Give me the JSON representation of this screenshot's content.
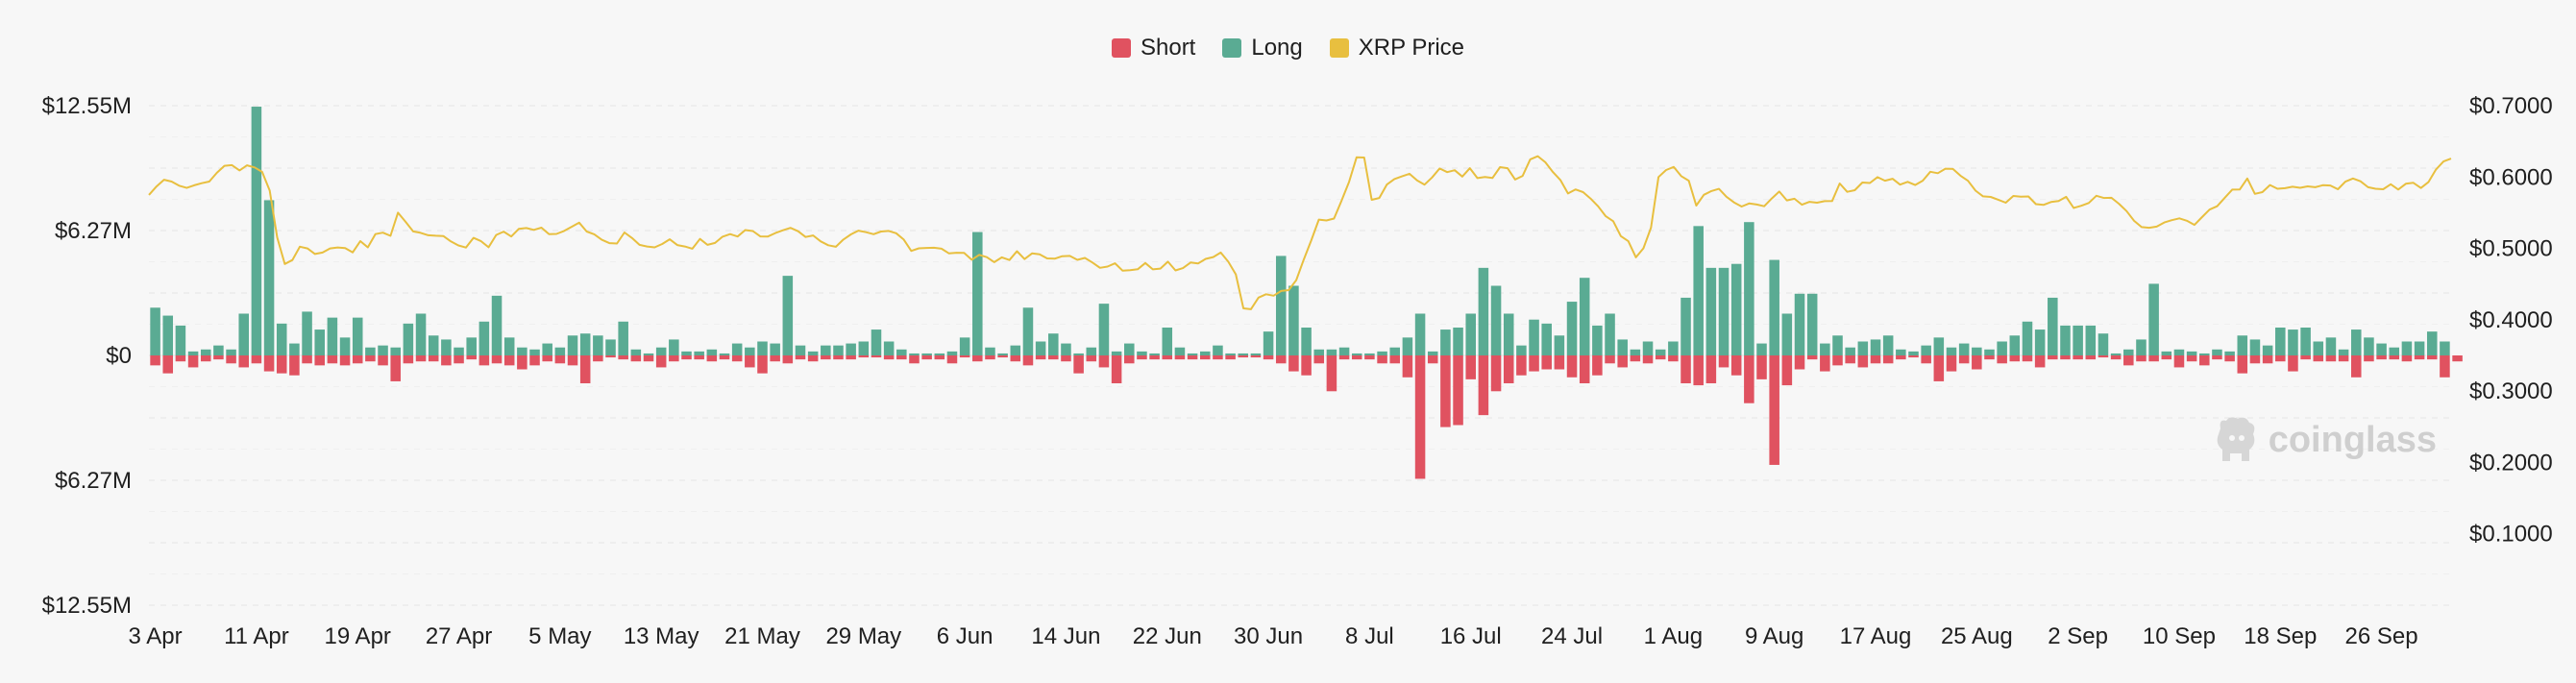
{
  "legend": {
    "items": [
      {
        "label": "Short",
        "color": "#e05260"
      },
      {
        "label": "Long",
        "color": "#5aab93"
      },
      {
        "label": "XRP Price",
        "color": "#e8bf3f"
      }
    ]
  },
  "watermark": {
    "text": "coinglass",
    "icon": "coinglass-logo-icon"
  },
  "chart_data": {
    "type": "bar",
    "y_left_ticks": [
      "$12.55M",
      "$6.27M",
      "$0",
      "$6.27M",
      "$12.55M"
    ],
    "y_left_range": [
      -12.55,
      12.55
    ],
    "y_left_unit": "M USD",
    "y_right_ticks": [
      "$0.7000",
      "$0.6000",
      "$0.5000",
      "$0.4000",
      "$0.3000",
      "$0.2000",
      "$0.1000"
    ],
    "y_right_range": [
      0.0,
      0.7
    ],
    "x_ticks": [
      "3 Apr",
      "11 Apr",
      "19 Apr",
      "27 Apr",
      "5 May",
      "13 May",
      "21 May",
      "29 May",
      "6 Jun",
      "14 Jun",
      "22 Jun",
      "30 Jun",
      "8 Jul",
      "16 Jul",
      "24 Jul",
      "1 Aug",
      "9 Aug",
      "17 Aug",
      "25 Aug",
      "2 Sep",
      "10 Sep",
      "18 Sep",
      "26 Sep"
    ],
    "x_tick_step_days": 8,
    "grid": true,
    "legend_position": "top-center",
    "long_values": [
      2.4,
      2.0,
      1.5,
      0.2,
      0.3,
      0.5,
      0.3,
      2.1,
      12.5,
      7.8,
      1.6,
      0.6,
      2.2,
      1.3,
      1.9,
      0.9,
      1.9,
      0.4,
      0.5,
      0.4,
      1.6,
      2.1,
      1.0,
      0.8,
      0.4,
      0.9,
      1.7,
      3.0,
      0.9,
      0.4,
      0.3,
      0.6,
      0.4,
      1.0,
      1.1,
      1.0,
      0.8,
      1.7,
      0.3,
      0.1,
      0.4,
      0.8,
      0.2,
      0.2,
      0.3,
      0.1,
      0.6,
      0.4,
      0.7,
      0.6,
      4.0,
      0.5,
      0.2,
      0.5,
      0.5,
      0.6,
      0.7,
      1.3,
      0.7,
      0.3,
      0.1,
      0.1,
      0.1,
      0.2,
      0.9,
      6.2,
      0.4,
      0.1,
      0.5,
      2.4,
      0.7,
      1.1,
      0.6,
      0.1,
      0.4,
      2.6,
      0.2,
      0.6,
      0.2,
      0.1,
      1.4,
      0.4,
      0.1,
      0.2,
      0.5,
      0.1,
      0.1,
      0.1,
      1.2,
      5.0,
      3.5,
      1.4,
      0.3,
      0.3,
      0.4,
      0.1,
      0.1,
      0.2,
      0.4,
      0.9,
      2.1,
      0.2,
      1.3,
      1.4,
      2.1,
      4.4,
      3.5,
      2.1,
      0.5,
      1.8,
      1.6,
      1.0,
      2.7,
      3.9,
      1.5,
      2.1,
      0.8,
      0.3,
      0.7,
      0.3,
      0.7,
      2.9,
      6.5,
      4.4,
      4.4,
      4.6,
      6.7,
      0.6,
      4.8,
      2.1,
      3.1,
      3.1,
      0.6,
      1.0,
      0.4,
      0.7,
      0.8,
      1.0,
      0.3,
      0.2,
      0.5,
      0.9,
      0.4,
      0.6,
      0.4,
      0.3,
      0.7,
      1.0,
      1.7,
      1.3,
      2.9,
      1.5,
      1.5,
      1.5,
      1.1,
      0.1,
      0.3,
      0.8,
      3.6,
      0.2,
      0.3,
      0.2,
      0.1,
      0.3,
      0.2,
      1.0,
      0.8,
      0.5,
      1.4,
      1.3,
      1.4,
      0.7,
      0.9,
      0.3,
      1.3,
      0.9,
      0.6,
      0.4,
      0.7,
      0.7,
      1.2,
      0.7
    ],
    "short_values": [
      0.5,
      0.9,
      0.3,
      0.6,
      0.3,
      0.2,
      0.4,
      0.6,
      0.4,
      0.8,
      0.9,
      1.0,
      0.4,
      0.5,
      0.4,
      0.5,
      0.4,
      0.3,
      0.5,
      1.3,
      0.4,
      0.3,
      0.3,
      0.5,
      0.4,
      0.2,
      0.5,
      0.4,
      0.5,
      0.7,
      0.5,
      0.3,
      0.4,
      0.5,
      1.4,
      0.3,
      0.1,
      0.2,
      0.3,
      0.3,
      0.6,
      0.3,
      0.2,
      0.2,
      0.3,
      0.2,
      0.3,
      0.6,
      0.9,
      0.3,
      0.4,
      0.2,
      0.3,
      0.2,
      0.2,
      0.2,
      0.1,
      0.1,
      0.2,
      0.2,
      0.4,
      0.2,
      0.2,
      0.4,
      0.1,
      0.3,
      0.2,
      0.1,
      0.3,
      0.5,
      0.2,
      0.2,
      0.3,
      0.9,
      0.3,
      0.6,
      1.4,
      0.4,
      0.2,
      0.2,
      0.2,
      0.2,
      0.2,
      0.2,
      0.2,
      0.2,
      0.1,
      0.1,
      0.2,
      0.4,
      0.8,
      1.0,
      0.4,
      1.8,
      0.2,
      0.2,
      0.2,
      0.4,
      0.4,
      1.1,
      6.2,
      0.4,
      3.6,
      3.5,
      1.2,
      3.0,
      1.8,
      1.4,
      1.0,
      0.8,
      0.7,
      0.7,
      1.1,
      1.4,
      1.0,
      0.4,
      0.6,
      0.3,
      0.4,
      0.2,
      0.3,
      1.4,
      1.5,
      1.4,
      0.6,
      1.0,
      2.4,
      1.2,
      5.5,
      1.5,
      0.7,
      0.2,
      0.8,
      0.5,
      0.4,
      0.6,
      0.4,
      0.4,
      0.2,
      0.1,
      0.4,
      1.3,
      0.8,
      0.4,
      0.7,
      0.2,
      0.4,
      0.3,
      0.3,
      0.6,
      0.2,
      0.2,
      0.2,
      0.2,
      0.1,
      0.2,
      0.5,
      0.3,
      0.3,
      0.2,
      0.6,
      0.3,
      0.5,
      0.2,
      0.3,
      0.9,
      0.4,
      0.4,
      0.3,
      0.8,
      0.2,
      0.3,
      0.3,
      0.3,
      1.1,
      0.3,
      0.2,
      0.2,
      0.3,
      0.2,
      0.2,
      1.1,
      0.3
    ],
    "price_values": [
      0.575,
      0.5868,
      0.5962,
      0.5937,
      0.5878,
      0.5848,
      0.5884,
      0.5913,
      0.5936,
      0.6059,
      0.6157,
      0.6167,
      0.6093,
      0.6164,
      0.6134,
      0.6072,
      0.581,
      0.5153,
      0.4781,
      0.4837,
      0.5024,
      0.5,
      0.4921,
      0.4942,
      0.5,
      0.5013,
      0.5005,
      0.4944,
      0.5102,
      0.5014,
      0.52,
      0.5221,
      0.5176,
      0.5501,
      0.5372,
      0.5238,
      0.5218,
      0.5184,
      0.5177,
      0.5173,
      0.5098,
      0.5042,
      0.5012,
      0.5148,
      0.5101,
      0.5016,
      0.5188,
      0.5235,
      0.5166,
      0.5273,
      0.5285,
      0.5259,
      0.529,
      0.5199,
      0.5203,
      0.5245,
      0.5303,
      0.536,
      0.5236,
      0.5197,
      0.5121,
      0.5073,
      0.5068,
      0.5223,
      0.5145,
      0.5049,
      0.5026,
      0.5015,
      0.5062,
      0.5128,
      0.5047,
      0.5026,
      0.4996,
      0.5133,
      0.505,
      0.5077,
      0.5164,
      0.52,
      0.5166,
      0.5257,
      0.5243,
      0.5168,
      0.5166,
      0.5215,
      0.5254,
      0.5288,
      0.5241,
      0.516,
      0.5181,
      0.5098,
      0.5044,
      0.5023,
      0.5123,
      0.5196,
      0.5249,
      0.5227,
      0.5199,
      0.5237,
      0.5244,
      0.5212,
      0.5124,
      0.4965,
      0.5001,
      0.5007,
      0.5009,
      0.4995,
      0.493,
      0.4939,
      0.4936,
      0.4841,
      0.491,
      0.4877,
      0.4807,
      0.4874,
      0.4837,
      0.496,
      0.485,
      0.4929,
      0.4917,
      0.486,
      0.4855,
      0.4891,
      0.4894,
      0.4839,
      0.4867,
      0.4802,
      0.4728,
      0.4745,
      0.4791,
      0.4687,
      0.4696,
      0.4707,
      0.4795,
      0.4706,
      0.4717,
      0.4814,
      0.4692,
      0.4723,
      0.4802,
      0.4788,
      0.4853,
      0.4878,
      0.4942,
      0.4812,
      0.4636,
      0.416,
      0.4148,
      0.4311,
      0.4357,
      0.4337,
      0.4403,
      0.4415,
      0.4555,
      0.4843,
      0.5116,
      0.5404,
      0.5391,
      0.5418,
      0.5667,
      0.5934,
      0.6277,
      0.6273,
      0.5681,
      0.5707,
      0.5894,
      0.5972,
      0.6009,
      0.6045,
      0.5953,
      0.5893,
      0.5994,
      0.6119,
      0.6069,
      0.6096,
      0.6006,
      0.6123,
      0.5985,
      0.6,
      0.5986,
      0.6139,
      0.6124,
      0.5965,
      0.6016,
      0.6247,
      0.6292,
      0.6207,
      0.607,
      0.5958,
      0.577,
      0.5826,
      0.5788,
      0.5698,
      0.5589,
      0.545,
      0.538,
      0.5172,
      0.5101,
      0.4875,
      0.5001,
      0.529,
      0.6,
      0.6098,
      0.6141,
      0.6013,
      0.5948,
      0.56,
      0.5751,
      0.5803,
      0.5834,
      0.5724,
      0.5645,
      0.5586,
      0.5629,
      0.5615,
      0.559,
      0.5699,
      0.5796,
      0.5673,
      0.5696,
      0.5612,
      0.5653,
      0.564,
      0.5662,
      0.5663,
      0.5909,
      0.5792,
      0.5815,
      0.5923,
      0.5916,
      0.5998,
      0.5948,
      0.5975,
      0.5894,
      0.5933,
      0.5888,
      0.5948,
      0.6074,
      0.6053,
      0.6117,
      0.6113,
      0.6019,
      0.5947,
      0.5808,
      0.5729,
      0.5721,
      0.5682,
      0.564,
      0.5735,
      0.5725,
      0.5728,
      0.562,
      0.561,
      0.565,
      0.5663,
      0.5723,
      0.5566,
      0.5597,
      0.5637,
      0.5737,
      0.5707,
      0.5709,
      0.5626,
      0.5523,
      0.5386,
      0.5299,
      0.5289,
      0.5305,
      0.5363,
      0.5396,
      0.5421,
      0.5387,
      0.5329,
      0.5438,
      0.5544,
      0.559,
      0.5707,
      0.5824,
      0.5825,
      0.598,
      0.5764,
      0.5788,
      0.5888,
      0.5836,
      0.5843,
      0.5864,
      0.5849,
      0.5869,
      0.5857,
      0.5885,
      0.5882,
      0.5829,
      0.5935,
      0.5979,
      0.5941,
      0.5857,
      0.5836,
      0.5829,
      0.5899,
      0.5825,
      0.5906,
      0.5919,
      0.5846,
      0.5929,
      0.6106,
      0.6218,
      0.6258
    ]
  }
}
